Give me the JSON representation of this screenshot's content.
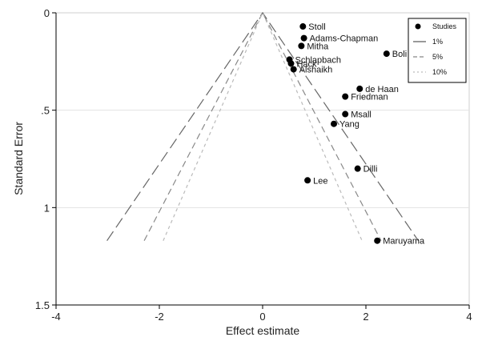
{
  "chart_data": {
    "type": "scatter",
    "xlabel": "Effect estimate",
    "ylabel": "Standard Error",
    "xlim": [
      -4,
      4
    ],
    "ylim": [
      0,
      1.5
    ],
    "y_inverted": true,
    "x_ticks": [
      -4,
      -2,
      0,
      2,
      4
    ],
    "x_tick_labels": [
      "-4",
      "-2",
      "0",
      "2",
      "4"
    ],
    "y_ticks": [
      0,
      0.5,
      1,
      1.5
    ],
    "y_tick_labels": [
      "0",
      ".5",
      "1",
      "1.5"
    ],
    "grid": "horizontal",
    "points": [
      {
        "label": "Stoll",
        "x": 0.78,
        "y": 0.07
      },
      {
        "label": "Adams-Chapman",
        "x": 0.8,
        "y": 0.13
      },
      {
        "label": "Mitha",
        "x": 0.75,
        "y": 0.17
      },
      {
        "label": "Boli",
        "x": 2.4,
        "y": 0.21
      },
      {
        "label": "Schlapbach",
        "x": 0.52,
        "y": 0.24
      },
      {
        "label": "Hack",
        "x": 0.55,
        "y": 0.26
      },
      {
        "label": "Alshaikh",
        "x": 0.6,
        "y": 0.29
      },
      {
        "label": "de Haan",
        "x": 1.88,
        "y": 0.39
      },
      {
        "label": "Friedman",
        "x": 1.6,
        "y": 0.43
      },
      {
        "label": "Msall",
        "x": 1.6,
        "y": 0.52
      },
      {
        "label": "Yang",
        "x": 1.38,
        "y": 0.57
      },
      {
        "label": "Dilli",
        "x": 1.84,
        "y": 0.8
      },
      {
        "label": "Lee",
        "x": 0.87,
        "y": 0.86
      },
      {
        "label": "Maruyama",
        "x": 2.22,
        "y": 1.17
      }
    ],
    "funnel": {
      "center": 0,
      "se_max": 1.17,
      "lines": [
        {
          "name": "1%",
          "z": 2.576,
          "dash": "long-dash",
          "color": "#666666"
        },
        {
          "name": "5%",
          "z": 1.96,
          "dash": "dash",
          "color": "#888888"
        },
        {
          "name": "10%",
          "z": 1.645,
          "dash": "short-dash",
          "color": "#bbbbbb"
        }
      ]
    },
    "legend": {
      "position": "top-right",
      "items": [
        {
          "label": "Studies",
          "symbol": "dot"
        },
        {
          "label": "1%",
          "symbol": "line"
        },
        {
          "label": "5%",
          "symbol": "dash"
        },
        {
          "label": "10%",
          "symbol": "short-dash"
        }
      ]
    }
  }
}
